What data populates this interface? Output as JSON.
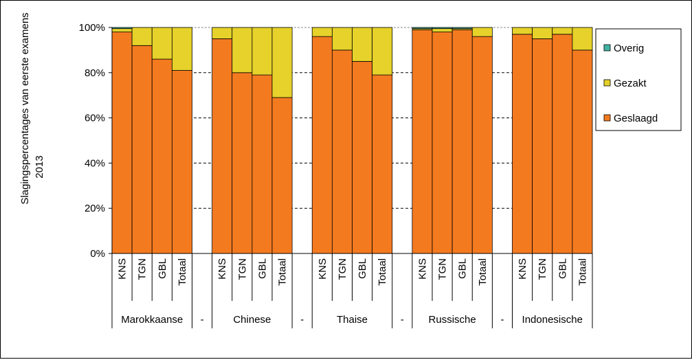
{
  "chart_data": {
    "type": "bar",
    "stacked": true,
    "ylabel": "Slagingspercentages van eerste examens 2013",
    "ylabel_lines": [
      "Slagingspercentages van eerste examens",
      "2013"
    ],
    "ylim": [
      0,
      100
    ],
    "yticks": [
      "0%",
      "20%",
      "40%",
      "60%",
      "80%",
      "100%"
    ],
    "grid": "dashed horizontal",
    "legend_position": "right",
    "groups": [
      {
        "name": "Marokkaanse",
        "separator": "-"
      },
      {
        "name": "Chinese",
        "separator": "-"
      },
      {
        "name": "Thaise",
        "separator": "-"
      },
      {
        "name": "Russische",
        "separator": "-"
      },
      {
        "name": "Indonesische",
        "separator": ""
      }
    ],
    "categories": [
      [
        "KNS",
        "TGN",
        "GBL",
        "Totaal"
      ],
      [
        "KNS",
        "TGN",
        "GBL",
        "Totaal"
      ],
      [
        "KNS",
        "TGN",
        "GBL",
        "Totaal"
      ],
      [
        "KNS",
        "TGN",
        "GBL",
        "Totaal"
      ],
      [
        "KNS",
        "TGN",
        "GBL",
        "Totaal"
      ]
    ],
    "series": [
      {
        "name": "Geslaagd",
        "color": "#F47A20",
        "values": [
          [
            98,
            92,
            86,
            81
          ],
          [
            95,
            80,
            79,
            69
          ],
          [
            96,
            90,
            85,
            79
          ],
          [
            99,
            98,
            99,
            96
          ],
          [
            97,
            95,
            97,
            90
          ]
        ]
      },
      {
        "name": "Gezakt",
        "color": "#E6D22A",
        "values": [
          [
            1.5,
            8,
            14,
            19
          ],
          [
            5,
            20,
            21,
            31
          ],
          [
            4,
            10,
            15,
            21
          ],
          [
            0.5,
            1.5,
            0.5,
            4
          ],
          [
            3,
            5,
            3,
            10
          ]
        ]
      },
      {
        "name": "Overig",
        "color": "#43B3A4",
        "values": [
          [
            0.5,
            0,
            0,
            0
          ],
          [
            0,
            0,
            0,
            0
          ],
          [
            0,
            0,
            0,
            0
          ],
          [
            0.5,
            0.5,
            0.5,
            0
          ],
          [
            0,
            0,
            0,
            0
          ]
        ]
      }
    ],
    "legend": [
      "Overig",
      "Gezakt",
      "Geslaagd"
    ]
  }
}
